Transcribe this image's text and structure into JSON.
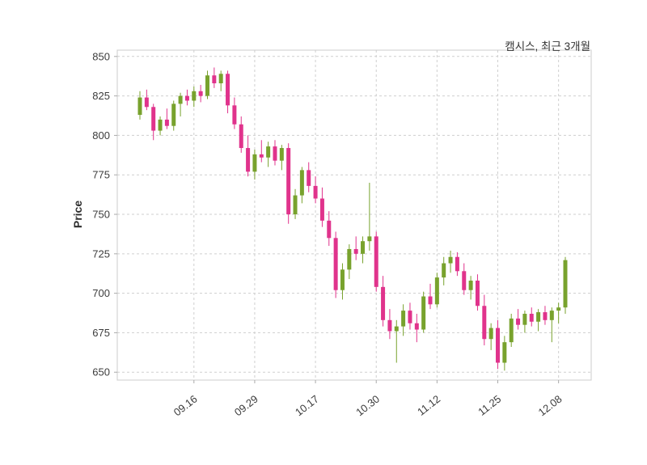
{
  "figure": {
    "background": "#ffffff"
  },
  "chart_data": {
    "type": "candlestick",
    "title": "캠시스, 최근 3개월",
    "ylabel": "Price",
    "grid": true,
    "grid_style": "dashed",
    "up_color": "#78a22d",
    "down_color": "#e0338c",
    "axis_text_color": "#3c3c3c",
    "grid_color": "#cfcfcf",
    "spine_color": "#cccccc",
    "ylim": [
      645,
      854
    ],
    "yticks": [
      650,
      675,
      700,
      725,
      750,
      775,
      800,
      825,
      850
    ],
    "xticks": [
      {
        "index": 8,
        "label": "09.16"
      },
      {
        "index": 17,
        "label": "09.29"
      },
      {
        "index": 26,
        "label": "10.17"
      },
      {
        "index": 35,
        "label": "10.30"
      },
      {
        "index": 44,
        "label": "11.12"
      },
      {
        "index": 53,
        "label": "11.25"
      },
      {
        "index": 62,
        "label": "12.08"
      }
    ],
    "candles_format": [
      "open",
      "high",
      "low",
      "close"
    ],
    "candles": [
      [
        813,
        828,
        810,
        824
      ],
      [
        824,
        829,
        816,
        818
      ],
      [
        818,
        820,
        797,
        803
      ],
      [
        803,
        812,
        800,
        810
      ],
      [
        810,
        817,
        804,
        806
      ],
      [
        806,
        822,
        803,
        820
      ],
      [
        820,
        827,
        812,
        825
      ],
      [
        825,
        829,
        819,
        822
      ],
      [
        822,
        831,
        818,
        828
      ],
      [
        828,
        832,
        821,
        825
      ],
      [
        825,
        841,
        823,
        838
      ],
      [
        838,
        843,
        830,
        833
      ],
      [
        833,
        841,
        828,
        839
      ],
      [
        839,
        841,
        814,
        819
      ],
      [
        819,
        824,
        804,
        807
      ],
      [
        807,
        812,
        789,
        792
      ],
      [
        792,
        800,
        774,
        777
      ],
      [
        777,
        791,
        772,
        788
      ],
      [
        788,
        797,
        783,
        786
      ],
      [
        786,
        796,
        780,
        793
      ],
      [
        793,
        797,
        781,
        784
      ],
      [
        784,
        794,
        778,
        792
      ],
      [
        792,
        795,
        744,
        750
      ],
      [
        750,
        766,
        747,
        762
      ],
      [
        762,
        780,
        757,
        778
      ],
      [
        778,
        783,
        764,
        768
      ],
      [
        768,
        774,
        757,
        760
      ],
      [
        760,
        767,
        742,
        746
      ],
      [
        746,
        752,
        730,
        735
      ],
      [
        735,
        739,
        697,
        702
      ],
      [
        702,
        719,
        696,
        715
      ],
      [
        715,
        731,
        709,
        728
      ],
      [
        728,
        736,
        721,
        725
      ],
      [
        725,
        736,
        719,
        733
      ],
      [
        733,
        770,
        727,
        736
      ],
      [
        736,
        739,
        701,
        704
      ],
      [
        704,
        711,
        679,
        683
      ],
      [
        683,
        690,
        671,
        676
      ],
      [
        676,
        683,
        656,
        679
      ],
      [
        679,
        693,
        673,
        689
      ],
      [
        689,
        694,
        677,
        681
      ],
      [
        681,
        687,
        669,
        677
      ],
      [
        677,
        701,
        675,
        698
      ],
      [
        698,
        706,
        690,
        693
      ],
      [
        693,
        713,
        691,
        710
      ],
      [
        710,
        723,
        705,
        719
      ],
      [
        719,
        727,
        713,
        723
      ],
      [
        723,
        726,
        711,
        714
      ],
      [
        714,
        719,
        699,
        702
      ],
      [
        702,
        711,
        696,
        708
      ],
      [
        708,
        712,
        689,
        692
      ],
      [
        692,
        699,
        667,
        671
      ],
      [
        671,
        681,
        664,
        678
      ],
      [
        678,
        683,
        652,
        656
      ],
      [
        656,
        673,
        651,
        669
      ],
      [
        669,
        687,
        666,
        684
      ],
      [
        684,
        690,
        677,
        680
      ],
      [
        680,
        689,
        675,
        687
      ],
      [
        687,
        691,
        679,
        682
      ],
      [
        682,
        690,
        676,
        688
      ],
      [
        688,
        692,
        680,
        683
      ],
      [
        683,
        691,
        669,
        689
      ],
      [
        689,
        694,
        681,
        691
      ],
      [
        691,
        723,
        687,
        721
      ]
    ]
  }
}
